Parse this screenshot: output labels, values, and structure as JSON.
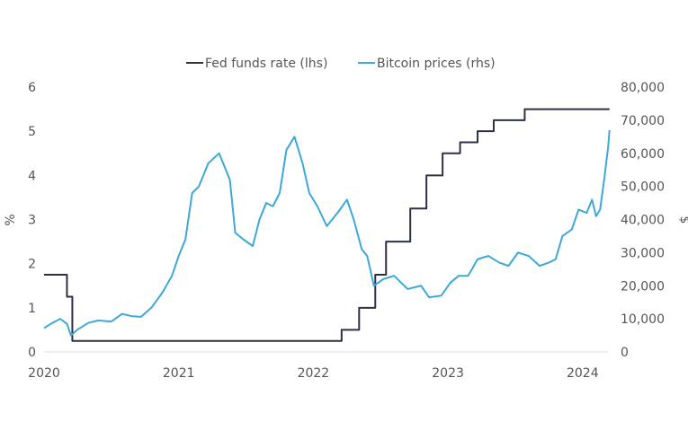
{
  "chart_data": {
    "type": "line",
    "title": "",
    "legend_position": "top-center",
    "grid": false,
    "x_ticks": [
      "2020",
      "2021",
      "2022",
      "2023",
      "2024"
    ],
    "xlim": [
      2020.0,
      2024.2
    ],
    "left_axis": {
      "label": "%",
      "ylim": [
        0,
        6
      ],
      "ticks": [
        "0",
        "1",
        "2",
        "3",
        "4",
        "5",
        "6"
      ]
    },
    "right_axis": {
      "label": "$",
      "ylim": [
        0,
        80000
      ],
      "ticks": [
        "0",
        "10,000",
        "20,000",
        "30,000",
        "40,000",
        "50,000",
        "60,000",
        "70,000",
        "80,000"
      ]
    },
    "series": [
      {
        "name": "Fed funds rate (lhs)",
        "axis": "left",
        "color": "#2d3047",
        "step": true,
        "x": [
          2020.0,
          2020.17,
          2020.21,
          2022.21,
          2022.34,
          2022.46,
          2022.54,
          2022.72,
          2022.84,
          2022.96,
          2023.09,
          2023.22,
          2023.34,
          2023.57,
          2024.2
        ],
        "y": [
          1.75,
          1.25,
          0.25,
          0.5,
          1.0,
          1.75,
          2.5,
          3.25,
          4.0,
          4.5,
          4.75,
          5.0,
          5.25,
          5.5,
          5.5
        ]
      },
      {
        "name": "Bitcoin prices (rhs)",
        "axis": "right",
        "color": "#3ea8d8",
        "x": [
          2020.0,
          2020.05,
          2020.12,
          2020.17,
          2020.2,
          2020.25,
          2020.33,
          2020.4,
          2020.5,
          2020.58,
          2020.65,
          2020.72,
          2020.8,
          2020.88,
          2020.95,
          2021.0,
          2021.05,
          2021.1,
          2021.15,
          2021.22,
          2021.3,
          2021.38,
          2021.42,
          2021.48,
          2021.55,
          2021.6,
          2021.65,
          2021.7,
          2021.75,
          2021.8,
          2021.86,
          2021.92,
          2021.97,
          2022.03,
          2022.1,
          2022.18,
          2022.25,
          2022.3,
          2022.36,
          2022.4,
          2022.45,
          2022.52,
          2022.6,
          2022.7,
          2022.8,
          2022.86,
          2022.95,
          2023.02,
          2023.08,
          2023.15,
          2023.22,
          2023.3,
          2023.38,
          2023.45,
          2023.52,
          2023.6,
          2023.68,
          2023.75,
          2023.8,
          2023.85,
          2023.92,
          2023.97,
          2024.03,
          2024.07,
          2024.1,
          2024.13,
          2024.16,
          2024.19,
          2024.2
        ],
        "y": [
          7200,
          8500,
          10000,
          8500,
          5000,
          6800,
          8800,
          9500,
          9200,
          11500,
          10800,
          10600,
          13500,
          18000,
          23000,
          29000,
          34000,
          48000,
          50000,
          57000,
          60000,
          52000,
          36000,
          34000,
          32000,
          40000,
          45000,
          44000,
          48000,
          61000,
          65000,
          57000,
          48000,
          44000,
          38000,
          42000,
          46000,
          40000,
          31000,
          29000,
          20000,
          22000,
          23000,
          19000,
          20000,
          16500,
          17000,
          21000,
          23000,
          23000,
          28000,
          29000,
          27000,
          26000,
          30000,
          29000,
          26000,
          27000,
          28000,
          35000,
          37000,
          43000,
          42000,
          46000,
          41000,
          43000,
          52000,
          62000,
          67000
        ]
      }
    ]
  }
}
